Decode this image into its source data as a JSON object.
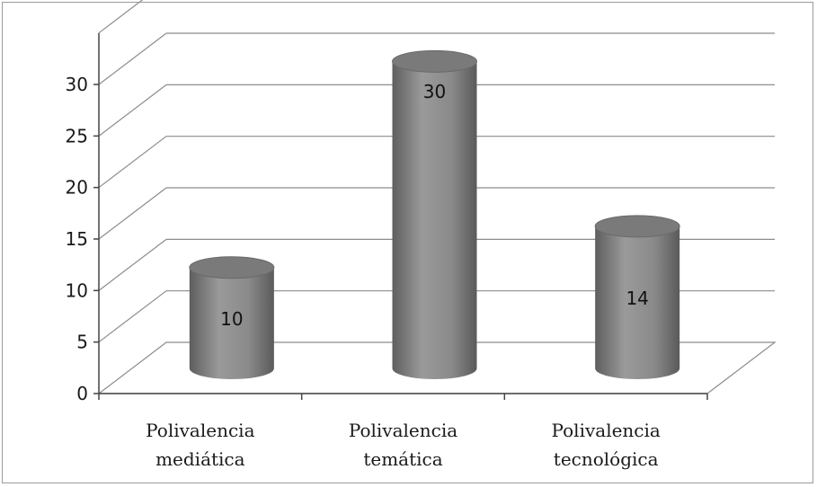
{
  "chart_data": {
    "type": "bar",
    "style": "3d-cylinder",
    "categories": [
      [
        "Polivalencia",
        "mediática"
      ],
      [
        "Polivalencia",
        "temática"
      ],
      [
        "Polivalencia",
        "tecnológica"
      ]
    ],
    "values": [
      10,
      30,
      14
    ],
    "data_labels": [
      "10",
      "30",
      "14"
    ],
    "y_ticks": [
      "0",
      "5",
      "10",
      "15",
      "20",
      "25",
      "30"
    ],
    "ylim": [
      0,
      35
    ],
    "grid": true,
    "legend": "none",
    "bar_color": "#858585",
    "title": "",
    "xlabel": "",
    "ylabel": ""
  }
}
